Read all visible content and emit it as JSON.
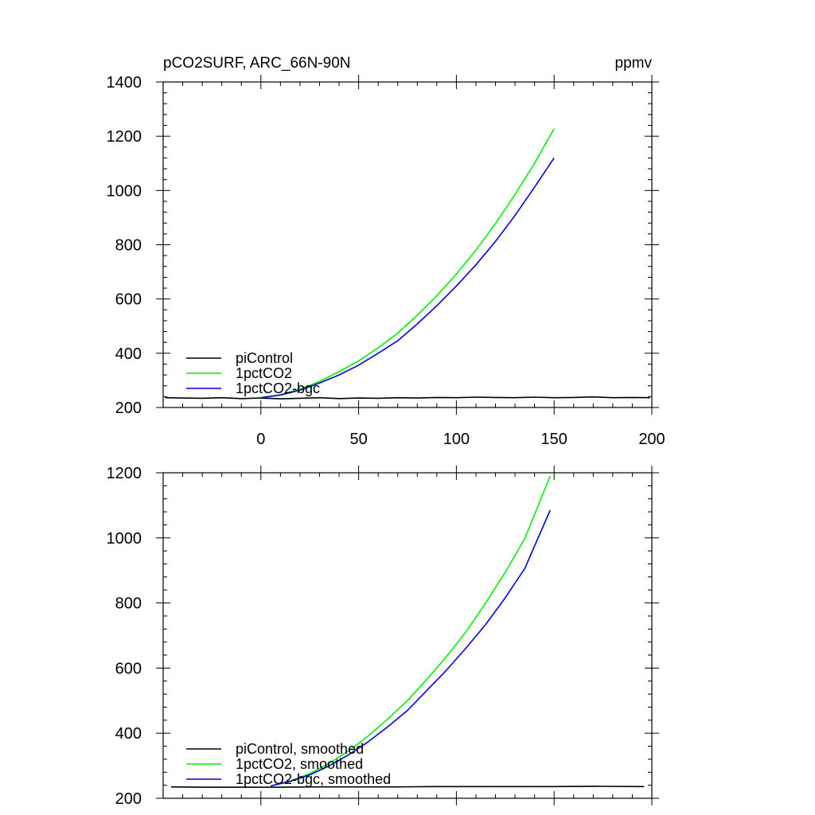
{
  "chart_data": [
    {
      "type": "line",
      "title": "pCO2SURF, ARC_66N-90N",
      "units": "ppmv",
      "xlim": [
        -50,
        200
      ],
      "ylim": [
        200,
        1400
      ],
      "xticks": [
        0,
        50,
        100,
        150,
        200
      ],
      "xtick_labels": [
        "0",
        "50",
        "100",
        "150",
        "200"
      ],
      "yticks": [
        200,
        400,
        600,
        800,
        1000,
        1200,
        1400
      ],
      "ytick_labels": [
        "200",
        "400",
        "600",
        "800",
        "1000",
        "1200",
        "1400"
      ],
      "legend_position": "bottom-left",
      "series": [
        {
          "name": "piControl",
          "color": "#000000",
          "x": [
            -49,
            -40,
            -30,
            -20,
            -10,
            0,
            10,
            20,
            30,
            40,
            50,
            60,
            70,
            80,
            90,
            100,
            110,
            120,
            130,
            140,
            150,
            160,
            170,
            180,
            190,
            199
          ],
          "y": [
            236,
            235,
            234,
            236,
            233,
            235,
            232,
            234,
            236,
            233,
            235,
            234,
            236,
            235,
            237,
            236,
            238,
            237,
            236,
            238,
            236,
            237,
            239,
            236,
            237,
            236
          ]
        },
        {
          "name": "1pctCO2",
          "color": "#00ee00",
          "x": [
            0,
            10,
            20,
            30,
            40,
            50,
            60,
            70,
            80,
            90,
            100,
            110,
            120,
            130,
            140,
            150
          ],
          "y": [
            236,
            247,
            268,
            296,
            332,
            372,
            420,
            474,
            540,
            612,
            692,
            780,
            878,
            985,
            1100,
            1228
          ]
        },
        {
          "name": "1pctCO2-bgc",
          "color": "#0000dd",
          "x": [
            0,
            10,
            20,
            30,
            40,
            50,
            60,
            70,
            80,
            90,
            100,
            110,
            120,
            130,
            140,
            150
          ],
          "y": [
            236,
            246,
            264,
            290,
            320,
            356,
            400,
            446,
            508,
            575,
            648,
            726,
            812,
            908,
            1012,
            1120
          ]
        }
      ]
    },
    {
      "type": "line",
      "xlim": [
        -50,
        200
      ],
      "ylim": [
        200,
        1200
      ],
      "yticks": [
        200,
        400,
        600,
        800,
        1000,
        1200
      ],
      "ytick_labels": [
        "200",
        "400",
        "600",
        "800",
        "1000",
        "1200"
      ],
      "legend_position": "bottom-left",
      "series": [
        {
          "name": "piControl, smoothed",
          "color": "#000000",
          "x": [
            -46,
            -30,
            -10,
            10,
            30,
            50,
            70,
            90,
            110,
            130,
            150,
            170,
            196
          ],
          "y": [
            235,
            234,
            234,
            234,
            235,
            235,
            235,
            236,
            236,
            236,
            236,
            237,
            236
          ]
        },
        {
          "name": "1pctCO2, smoothed",
          "color": "#00ee00",
          "x": [
            5,
            15,
            25,
            35,
            45,
            55,
            65,
            75,
            85,
            95,
            105,
            115,
            125,
            135,
            148
          ],
          "y": [
            238,
            253,
            276,
            308,
            346,
            392,
            444,
            500,
            566,
            636,
            712,
            800,
            894,
            998,
            1190
          ]
        },
        {
          "name": "1pctCO2-bgc, smoothed",
          "color": "#0000dd",
          "x": [
            5,
            15,
            25,
            35,
            45,
            55,
            65,
            75,
            85,
            95,
            105,
            115,
            125,
            135,
            148
          ],
          "y": [
            238,
            252,
            272,
            300,
            334,
            374,
            420,
            470,
            532,
            594,
            662,
            734,
            816,
            906,
            1085
          ]
        }
      ]
    }
  ]
}
